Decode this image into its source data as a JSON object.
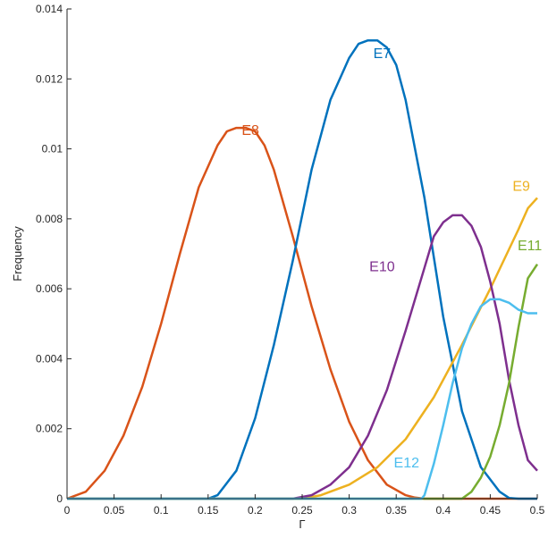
{
  "chart_data": {
    "type": "line",
    "xlabel": "Γ",
    "ylabel": "Frequency",
    "xlim": [
      0,
      0.5
    ],
    "ylim": [
      0,
      0.014
    ],
    "grid": false,
    "xticks": [
      "0",
      "0.05",
      "0.1",
      "0.15",
      "0.2",
      "0.25",
      "0.3",
      "0.35",
      "0.4",
      "0.45",
      "0.5"
    ],
    "yticks": [
      "0",
      "0.002",
      "0.004",
      "0.006",
      "0.008",
      "0.01",
      "0.012",
      "0.014"
    ],
    "series": [
      {
        "name": "E8",
        "color": "#D95319",
        "label_at": [
          0.195,
          0.0104
        ],
        "x": [
          0,
          0.02,
          0.04,
          0.06,
          0.08,
          0.1,
          0.12,
          0.14,
          0.16,
          0.17,
          0.18,
          0.19,
          0.2,
          0.21,
          0.22,
          0.24,
          0.26,
          0.28,
          0.3,
          0.32,
          0.34,
          0.36,
          0.37,
          0.38,
          0.4,
          0.45,
          0.5
        ],
        "y": [
          0,
          0.0002,
          0.0008,
          0.0018,
          0.0032,
          0.005,
          0.007,
          0.0089,
          0.0101,
          0.0105,
          0.0106,
          0.0106,
          0.0105,
          0.0101,
          0.0094,
          0.0075,
          0.0055,
          0.0037,
          0.0022,
          0.0011,
          0.0004,
          0.0001,
          3e-05,
          0,
          0,
          0,
          0
        ]
      },
      {
        "name": "E7",
        "color": "#0072BD",
        "label_at": [
          0.335,
          0.0126
        ],
        "x": [
          0,
          0.15,
          0.16,
          0.18,
          0.2,
          0.22,
          0.24,
          0.26,
          0.28,
          0.3,
          0.31,
          0.32,
          0.33,
          0.34,
          0.35,
          0.36,
          0.38,
          0.4,
          0.42,
          0.44,
          0.46,
          0.47,
          0.48,
          0.5
        ],
        "y": [
          0,
          0,
          0.0001,
          0.0008,
          0.0023,
          0.0044,
          0.0068,
          0.0094,
          0.0114,
          0.0126,
          0.013,
          0.0131,
          0.0131,
          0.0129,
          0.0124,
          0.0114,
          0.0086,
          0.0052,
          0.0025,
          0.0009,
          0.0002,
          2e-05,
          0,
          0
        ]
      },
      {
        "name": "E9",
        "color": "#EDB120",
        "label_at": [
          0.483,
          0.0088
        ],
        "x": [
          0,
          0.25,
          0.27,
          0.3,
          0.33,
          0.36,
          0.39,
          0.42,
          0.45,
          0.48,
          0.49,
          0.5
        ],
        "y": [
          0,
          0,
          0.0001,
          0.0004,
          0.0009,
          0.0017,
          0.0029,
          0.0044,
          0.006,
          0.0077,
          0.0083,
          0.0086
        ]
      },
      {
        "name": "E10",
        "color": "#7E2F8E",
        "label_at": [
          0.335,
          0.0065
        ],
        "x": [
          0,
          0.24,
          0.26,
          0.28,
          0.3,
          0.32,
          0.34,
          0.36,
          0.38,
          0.39,
          0.4,
          0.41,
          0.42,
          0.43,
          0.44,
          0.45,
          0.46,
          0.47,
          0.48,
          0.49,
          0.5
        ],
        "y": [
          0,
          0,
          0.0001,
          0.0004,
          0.0009,
          0.0018,
          0.0031,
          0.0048,
          0.0066,
          0.0075,
          0.0079,
          0.0081,
          0.0081,
          0.0078,
          0.0072,
          0.0062,
          0.005,
          0.0034,
          0.0021,
          0.0011,
          0.0008
        ]
      },
      {
        "name": "E11",
        "color": "#77AC30",
        "label_at": [
          0.492,
          0.0071
        ],
        "x": [
          0,
          0.42,
          0.43,
          0.44,
          0.45,
          0.46,
          0.47,
          0.48,
          0.49,
          0.5
        ],
        "y": [
          0,
          0,
          0.0002,
          0.0006,
          0.0012,
          0.0021,
          0.0033,
          0.0049,
          0.0063,
          0.0067
        ]
      },
      {
        "name": "E12",
        "color": "#4DBEEE",
        "label_at": [
          0.361,
          0.0009
        ],
        "x": [
          0,
          0.377,
          0.38,
          0.39,
          0.4,
          0.41,
          0.42,
          0.43,
          0.44,
          0.45,
          0.46,
          0.47,
          0.48,
          0.49,
          0.5
        ],
        "y": [
          0,
          0,
          0.0001,
          0.001,
          0.0021,
          0.0033,
          0.0043,
          0.005,
          0.0055,
          0.0057,
          0.0057,
          0.0056,
          0.0054,
          0.0053,
          0.0053
        ]
      }
    ]
  }
}
